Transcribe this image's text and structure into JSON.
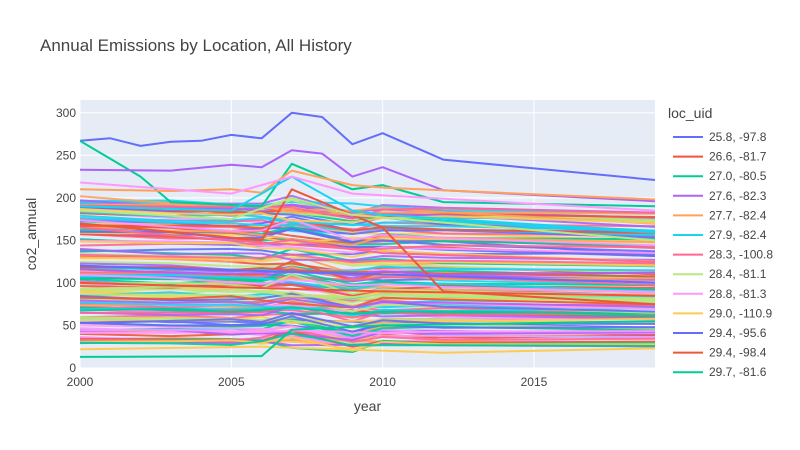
{
  "chart_data": {
    "type": "line",
    "title": "Annual Emissions by Location, All History",
    "xlabel": "year",
    "ylabel": "co2_annual",
    "xlim": [
      2000,
      2019
    ],
    "ylim": [
      0,
      315
    ],
    "x_ticks": [
      2000,
      2005,
      2010,
      2015
    ],
    "y_ticks": [
      0,
      50,
      100,
      150,
      200,
      250,
      300
    ],
    "grid": true,
    "plot_background": "#e5ecf6",
    "legend": {
      "title": "loc_uid",
      "placement": "right"
    },
    "series": [
      {
        "name": "25.8, -97.8",
        "color": "#636efa",
        "x": [
          2000,
          2001,
          2002,
          2003,
          2004,
          2005,
          2006,
          2007,
          2008,
          2009,
          2010,
          2012,
          2019
        ],
        "y": [
          267,
          270,
          261,
          266,
          267,
          274,
          270,
          300,
          295,
          263,
          276,
          245,
          221
        ]
      },
      {
        "name": "26.6, -81.7",
        "color": "#ef553b",
        "x": [
          2000,
          2003,
          2006,
          2007,
          2009,
          2010,
          2012,
          2019
        ],
        "y": [
          170,
          160,
          150,
          210,
          180,
          165,
          90,
          75
        ]
      },
      {
        "name": "27.0, -80.5",
        "color": "#00cc96",
        "x": [
          2000,
          2002,
          2003,
          2006,
          2007,
          2009,
          2010,
          2012,
          2019
        ],
        "y": [
          267,
          225,
          195,
          190,
          240,
          210,
          215,
          195,
          190
        ]
      },
      {
        "name": "27.6, -82.3",
        "color": "#ab63fa",
        "x": [
          2000,
          2003,
          2005,
          2006,
          2007,
          2008,
          2009,
          2010,
          2012,
          2019
        ],
        "y": [
          233,
          232,
          239,
          236,
          256,
          252,
          225,
          236,
          209,
          196
        ]
      },
      {
        "name": "27.7, -82.4",
        "color": "#ffa15a",
        "x": [
          2000,
          2003,
          2005,
          2006,
          2007,
          2009,
          2010,
          2019
        ],
        "y": [
          210,
          208,
          210,
          206,
          232,
          215,
          212,
          198
        ]
      },
      {
        "name": "27.9, -82.4",
        "color": "#19d3f3",
        "x": [
          2000,
          2005,
          2007,
          2009,
          2010,
          2019
        ],
        "y": [
          190,
          185,
          225,
          185,
          180,
          160
        ]
      },
      {
        "name": "28.3, -100.8",
        "color": "#ff6692",
        "x": [
          2000,
          2005,
          2009,
          2010,
          2019
        ],
        "y": [
          165,
          150,
          140,
          135,
          125
        ]
      },
      {
        "name": "28.4, -81.1",
        "color": "#b6e880",
        "x": [
          2000,
          2005,
          2007,
          2009,
          2019
        ],
        "y": [
          185,
          175,
          200,
          180,
          150
        ]
      },
      {
        "name": "28.8, -81.3",
        "color": "#ff97ff",
        "x": [
          2000,
          2005,
          2007,
          2009,
          2019
        ],
        "y": [
          218,
          205,
          225,
          205,
          185
        ]
      },
      {
        "name": "29.0, -110.9",
        "color": "#fecb52",
        "x": [
          2000,
          2006,
          2012,
          2019
        ],
        "y": [
          22,
          25,
          18,
          23
        ]
      },
      {
        "name": "29.4, -95.6",
        "color": "#636efa",
        "x": [
          2000,
          2005,
          2010,
          2019
        ],
        "y": [
          120,
          115,
          110,
          100
        ]
      },
      {
        "name": "29.4, -98.4",
        "color": "#ef553b",
        "x": [
          2000,
          2005,
          2010,
          2019
        ],
        "y": [
          100,
          95,
          90,
          85
        ]
      },
      {
        "name": "29.7, -81.6",
        "color": "#00cc96",
        "x": [
          2000,
          2006,
          2007,
          2010,
          2019
        ],
        "y": [
          13,
          14,
          45,
          50,
          55
        ]
      }
    ]
  }
}
